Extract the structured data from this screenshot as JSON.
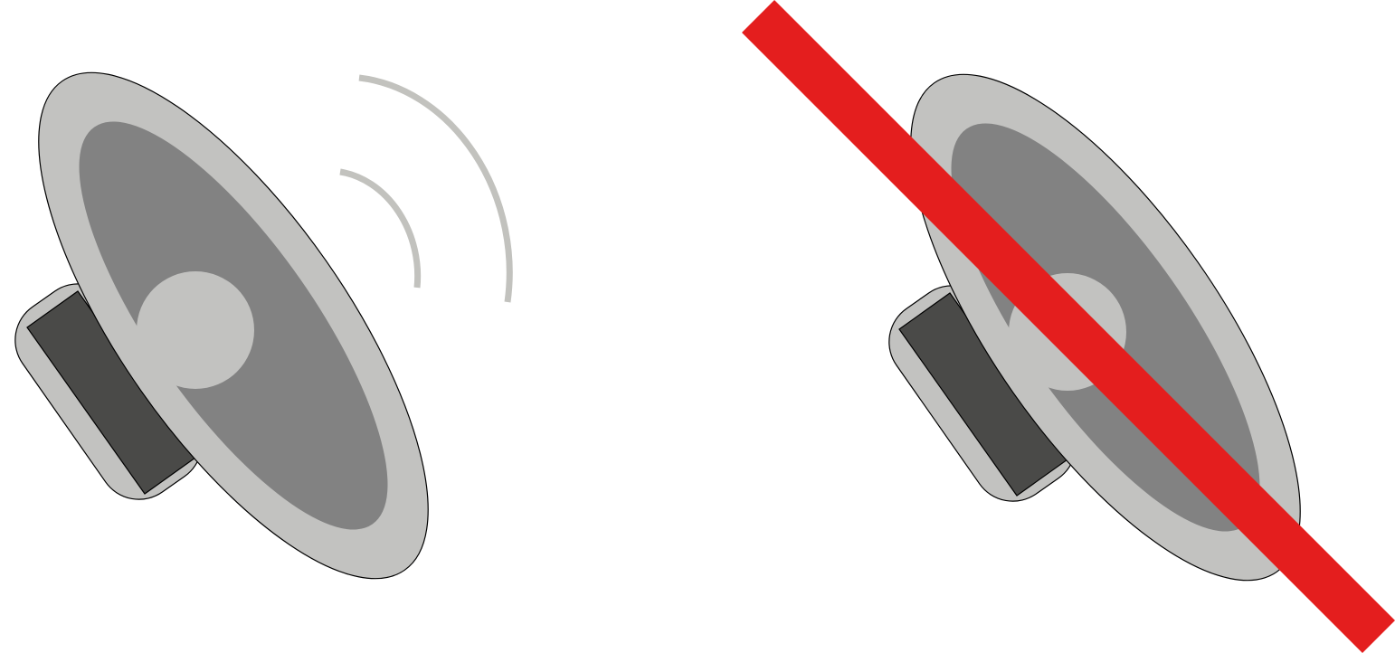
{
  "icons": [
    {
      "name": "speaker-sound-on-icon",
      "state": "sound on",
      "parts": [
        "speaker-magnet-icon",
        "speaker-cone-icon",
        "sound-wave-icon"
      ]
    },
    {
      "name": "speaker-muted-icon",
      "state": "muted",
      "parts": [
        "speaker-magnet-icon",
        "speaker-cone-icon",
        "mute-slash-icon"
      ]
    }
  ],
  "colors": {
    "background": "#ffffff",
    "speaker_light_gray": "#c2c2c0",
    "speaker_mid_gray": "#828282",
    "speaker_dark_band": "#4a4a48",
    "outline": "#000000",
    "sound_wave": "#c2c2be",
    "mute_slash": "#e41e1e"
  }
}
